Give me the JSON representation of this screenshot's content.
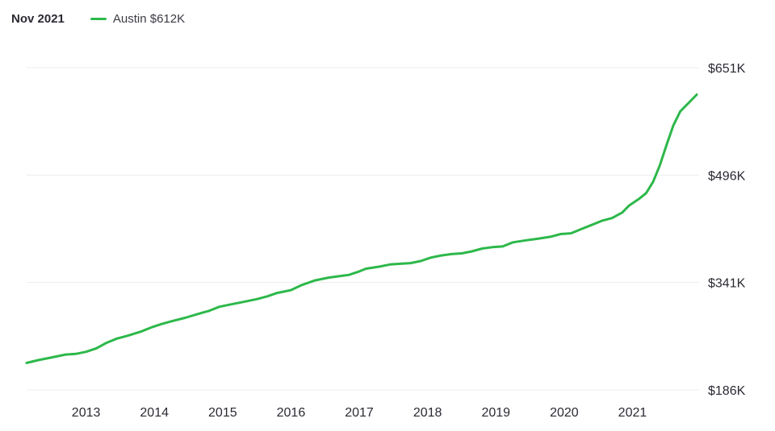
{
  "header": {
    "date": "Nov 2021",
    "legend_label": "Austin $612K"
  },
  "colors": {
    "line": "#2db84a",
    "grid": "#ececef",
    "text": "#2a2a33"
  },
  "chart_data": {
    "type": "line",
    "title": "",
    "xlabel": "",
    "ylabel": "",
    "grid": true,
    "legend": "top-left",
    "xlim": [
      2012.13,
      2021.94
    ],
    "ylim": [
      186,
      651
    ],
    "y_ticks": [
      {
        "value": 651,
        "label": "$651K"
      },
      {
        "value": 496,
        "label": "$496K"
      },
      {
        "value": 341,
        "label": "$341K"
      },
      {
        "value": 186,
        "label": "$186K"
      }
    ],
    "x_ticks": [
      {
        "value": 2013,
        "label": "2013"
      },
      {
        "value": 2014,
        "label": "2014"
      },
      {
        "value": 2015,
        "label": "2015"
      },
      {
        "value": 2016,
        "label": "2016"
      },
      {
        "value": 2017,
        "label": "2017"
      },
      {
        "value": 2018,
        "label": "2018"
      },
      {
        "value": 2019,
        "label": "2019"
      },
      {
        "value": 2020,
        "label": "2020"
      },
      {
        "value": 2021,
        "label": "2021"
      }
    ],
    "series": [
      {
        "name": "Austin",
        "points": [
          [
            2012.13,
            225
          ],
          [
            2012.3,
            229
          ],
          [
            2012.5,
            233
          ],
          [
            2012.7,
            237
          ],
          [
            2012.85,
            238
          ],
          [
            2013.0,
            241
          ],
          [
            2013.15,
            246
          ],
          [
            2013.3,
            254
          ],
          [
            2013.45,
            260
          ],
          [
            2013.6,
            264
          ],
          [
            2013.8,
            270
          ],
          [
            2013.95,
            276
          ],
          [
            2014.1,
            281
          ],
          [
            2014.25,
            285
          ],
          [
            2014.45,
            290
          ],
          [
            2014.65,
            296
          ],
          [
            2014.8,
            300
          ],
          [
            2014.95,
            306
          ],
          [
            2015.1,
            309
          ],
          [
            2015.3,
            313
          ],
          [
            2015.5,
            317
          ],
          [
            2015.65,
            321
          ],
          [
            2015.8,
            326
          ],
          [
            2016.0,
            330
          ],
          [
            2016.15,
            337
          ],
          [
            2016.35,
            344
          ],
          [
            2016.55,
            348
          ],
          [
            2016.7,
            350
          ],
          [
            2016.85,
            352
          ],
          [
            2017.0,
            357
          ],
          [
            2017.1,
            361
          ],
          [
            2017.3,
            364
          ],
          [
            2017.45,
            367
          ],
          [
            2017.6,
            368
          ],
          [
            2017.75,
            369
          ],
          [
            2017.9,
            372
          ],
          [
            2018.05,
            377
          ],
          [
            2018.2,
            380
          ],
          [
            2018.35,
            382
          ],
          [
            2018.5,
            383
          ],
          [
            2018.65,
            386
          ],
          [
            2018.8,
            390
          ],
          [
            2018.95,
            392
          ],
          [
            2019.1,
            393
          ],
          [
            2019.25,
            399
          ],
          [
            2019.45,
            402
          ],
          [
            2019.6,
            404
          ],
          [
            2019.8,
            407
          ],
          [
            2019.95,
            411
          ],
          [
            2020.1,
            412
          ],
          [
            2020.25,
            418
          ],
          [
            2020.4,
            424
          ],
          [
            2020.55,
            430
          ],
          [
            2020.7,
            434
          ],
          [
            2020.85,
            442
          ],
          [
            2020.95,
            452
          ],
          [
            2021.1,
            462
          ],
          [
            2021.2,
            470
          ],
          [
            2021.3,
            486
          ],
          [
            2021.4,
            510
          ],
          [
            2021.5,
            540
          ],
          [
            2021.6,
            568
          ],
          [
            2021.7,
            588
          ],
          [
            2021.8,
            598
          ],
          [
            2021.94,
            612
          ]
        ]
      }
    ]
  }
}
